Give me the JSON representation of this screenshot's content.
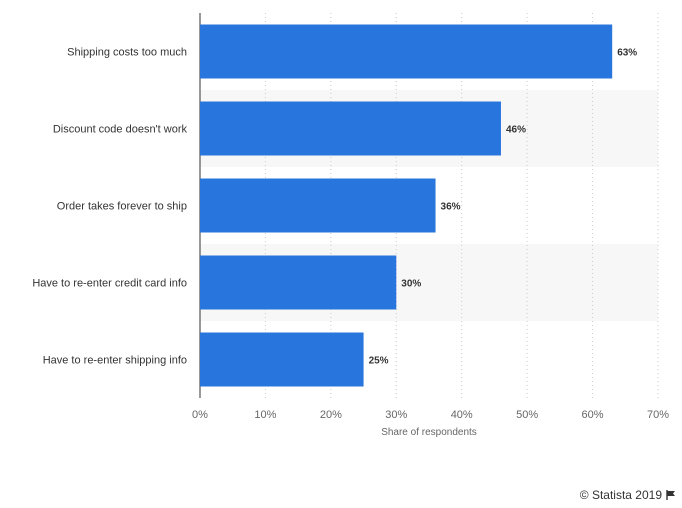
{
  "chart_data": {
    "type": "bar",
    "orientation": "horizontal",
    "categories": [
      "Shipping costs too much",
      "Discount code doesn't work",
      "Order takes forever to ship",
      "Have to re-enter credit card info",
      "Have to re-enter shipping info"
    ],
    "values": [
      63,
      46,
      36,
      30,
      25
    ],
    "data_labels": [
      "63%",
      "46%",
      "36%",
      "30%",
      "25%"
    ],
    "xlim": [
      0,
      70
    ],
    "x_ticks": [
      "0%",
      "10%",
      "20%",
      "30%",
      "40%",
      "50%",
      "60%",
      "70%"
    ],
    "xlabel": "Share of respondents",
    "grid": true,
    "bar_color": "#2876dd"
  },
  "credit": {
    "text": "© Statista 2019",
    "icon": "flag-icon"
  }
}
